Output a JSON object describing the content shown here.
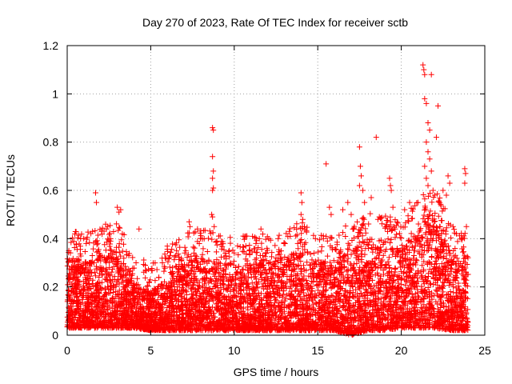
{
  "chart_data": {
    "type": "scatter",
    "title": "Day 270 of 2023, Rate Of TEC Index for receiver sctb",
    "xlabel": "GPS time / hours",
    "ylabel": "ROTI / TECUs",
    "xlim": [
      0,
      25
    ],
    "ylim": [
      0,
      1.2
    ],
    "x_ticks": [
      0,
      5,
      10,
      15,
      20,
      25
    ],
    "x_tick_labels": [
      "0",
      "5",
      "10",
      "15",
      "20",
      "25"
    ],
    "y_ticks": [
      0,
      0.2,
      0.4,
      0.6,
      0.8,
      1,
      1.2
    ],
    "y_tick_labels": [
      "0",
      "0.2",
      "0.4",
      "0.6",
      "0.8",
      "1",
      "1.2"
    ],
    "grid": true,
    "marker": "+",
    "color": "#ff0000",
    "x_range_of_data": [
      0,
      24
    ],
    "baseline_envelope": [
      {
        "x": 0,
        "low": 0.03,
        "high": 0.32
      },
      {
        "x": 1,
        "low": 0.03,
        "high": 0.3
      },
      {
        "x": 2,
        "low": 0.03,
        "high": 0.33
      },
      {
        "x": 3,
        "low": 0.03,
        "high": 0.35
      },
      {
        "x": 4,
        "low": 0.03,
        "high": 0.22
      },
      {
        "x": 5,
        "low": 0.02,
        "high": 0.18
      },
      {
        "x": 6,
        "low": 0.02,
        "high": 0.25
      },
      {
        "x": 7,
        "low": 0.02,
        "high": 0.3
      },
      {
        "x": 8,
        "low": 0.02,
        "high": 0.33
      },
      {
        "x": 9,
        "low": 0.02,
        "high": 0.3
      },
      {
        "x": 10,
        "low": 0.02,
        "high": 0.3
      },
      {
        "x": 11,
        "low": 0.02,
        "high": 0.3
      },
      {
        "x": 12,
        "low": 0.02,
        "high": 0.3
      },
      {
        "x": 13,
        "low": 0.02,
        "high": 0.32
      },
      {
        "x": 14,
        "low": 0.02,
        "high": 0.35
      },
      {
        "x": 15,
        "low": 0.02,
        "high": 0.3
      },
      {
        "x": 16,
        "low": 0.02,
        "high": 0.3
      },
      {
        "x": 17,
        "low": 0.0,
        "high": 0.35
      },
      {
        "x": 18,
        "low": 0.02,
        "high": 0.4
      },
      {
        "x": 19,
        "low": 0.02,
        "high": 0.38
      },
      {
        "x": 20,
        "low": 0.03,
        "high": 0.35
      },
      {
        "x": 21,
        "low": 0.03,
        "high": 0.45
      },
      {
        "x": 22,
        "low": 0.03,
        "high": 0.5
      },
      {
        "x": 23,
        "low": 0.02,
        "high": 0.35
      },
      {
        "x": 24,
        "low": 0.02,
        "high": 0.3
      }
    ],
    "notable_points": [
      {
        "x": 0.1,
        "y": 0.35
      },
      {
        "x": 0.8,
        "y": 0.4
      },
      {
        "x": 1.5,
        "y": 0.33
      },
      {
        "x": 1.7,
        "y": 0.59
      },
      {
        "x": 1.75,
        "y": 0.55
      },
      {
        "x": 2.3,
        "y": 0.46
      },
      {
        "x": 2.35,
        "y": 0.44
      },
      {
        "x": 2.6,
        "y": 0.4
      },
      {
        "x": 3.0,
        "y": 0.53
      },
      {
        "x": 3.1,
        "y": 0.51
      },
      {
        "x": 3.2,
        "y": 0.52
      },
      {
        "x": 3.3,
        "y": 0.42
      },
      {
        "x": 4.3,
        "y": 0.44
      },
      {
        "x": 5.7,
        "y": 0.3
      },
      {
        "x": 6.5,
        "y": 0.33
      },
      {
        "x": 7.1,
        "y": 0.35
      },
      {
        "x": 7.3,
        "y": 0.47
      },
      {
        "x": 7.35,
        "y": 0.45
      },
      {
        "x": 7.8,
        "y": 0.44
      },
      {
        "x": 8.2,
        "y": 0.4
      },
      {
        "x": 8.7,
        "y": 0.86
      },
      {
        "x": 8.75,
        "y": 0.85
      },
      {
        "x": 8.7,
        "y": 0.74
      },
      {
        "x": 8.75,
        "y": 0.68
      },
      {
        "x": 8.7,
        "y": 0.65
      },
      {
        "x": 8.75,
        "y": 0.61
      },
      {
        "x": 8.7,
        "y": 0.6
      },
      {
        "x": 8.65,
        "y": 0.5
      },
      {
        "x": 8.7,
        "y": 0.49
      },
      {
        "x": 8.8,
        "y": 0.45
      },
      {
        "x": 9.7,
        "y": 0.35
      },
      {
        "x": 10.2,
        "y": 0.37
      },
      {
        "x": 10.9,
        "y": 0.35
      },
      {
        "x": 11.3,
        "y": 0.38
      },
      {
        "x": 11.5,
        "y": 0.4
      },
      {
        "x": 11.6,
        "y": 0.44
      },
      {
        "x": 12.5,
        "y": 0.32
      },
      {
        "x": 13.3,
        "y": 0.43
      },
      {
        "x": 13.35,
        "y": 0.41
      },
      {
        "x": 13.8,
        "y": 0.38
      },
      {
        "x": 14.0,
        "y": 0.59
      },
      {
        "x": 14.05,
        "y": 0.55
      },
      {
        "x": 14.0,
        "y": 0.5
      },
      {
        "x": 14.1,
        "y": 0.48
      },
      {
        "x": 14.2,
        "y": 0.45
      },
      {
        "x": 15.5,
        "y": 0.71
      },
      {
        "x": 15.5,
        "y": 0.41
      },
      {
        "x": 15.7,
        "y": 0.53
      },
      {
        "x": 15.8,
        "y": 0.5
      },
      {
        "x": 16.5,
        "y": 0.52
      },
      {
        "x": 16.8,
        "y": 0.55
      },
      {
        "x": 17.0,
        "y": 0.5
      },
      {
        "x": 17.1,
        "y": 0.44
      },
      {
        "x": 17.5,
        "y": 0.78
      },
      {
        "x": 17.55,
        "y": 0.7
      },
      {
        "x": 17.6,
        "y": 0.66
      },
      {
        "x": 17.5,
        "y": 0.62
      },
      {
        "x": 17.7,
        "y": 0.6
      },
      {
        "x": 17.8,
        "y": 0.55
      },
      {
        "x": 18.2,
        "y": 0.57
      },
      {
        "x": 18.5,
        "y": 0.82
      },
      {
        "x": 18.6,
        "y": 0.48
      },
      {
        "x": 19.3,
        "y": 0.65
      },
      {
        "x": 19.35,
        "y": 0.62
      },
      {
        "x": 19.4,
        "y": 0.6
      },
      {
        "x": 19.5,
        "y": 0.53
      },
      {
        "x": 20.2,
        "y": 0.52
      },
      {
        "x": 20.5,
        "y": 0.55
      },
      {
        "x": 21.0,
        "y": 0.55
      },
      {
        "x": 21.3,
        "y": 1.12
      },
      {
        "x": 21.35,
        "y": 1.1
      },
      {
        "x": 21.4,
        "y": 1.08
      },
      {
        "x": 21.8,
        "y": 1.08
      },
      {
        "x": 21.4,
        "y": 0.98
      },
      {
        "x": 21.5,
        "y": 0.96
      },
      {
        "x": 22.2,
        "y": 0.95
      },
      {
        "x": 21.6,
        "y": 0.88
      },
      {
        "x": 21.7,
        "y": 0.85
      },
      {
        "x": 21.5,
        "y": 0.8
      },
      {
        "x": 21.6,
        "y": 0.76
      },
      {
        "x": 21.7,
        "y": 0.73
      },
      {
        "x": 21.4,
        "y": 0.7
      },
      {
        "x": 21.8,
        "y": 0.68
      },
      {
        "x": 22.1,
        "y": 0.82
      },
      {
        "x": 21.5,
        "y": 0.65
      },
      {
        "x": 21.6,
        "y": 0.62
      },
      {
        "x": 21.9,
        "y": 0.6
      },
      {
        "x": 22.0,
        "y": 0.58
      },
      {
        "x": 22.3,
        "y": 0.55
      },
      {
        "x": 22.5,
        "y": 0.6
      },
      {
        "x": 22.8,
        "y": 0.66
      },
      {
        "x": 22.9,
        "y": 0.63
      },
      {
        "x": 22.7,
        "y": 0.58
      },
      {
        "x": 23.1,
        "y": 0.45
      },
      {
        "x": 23.3,
        "y": 0.42
      },
      {
        "x": 23.6,
        "y": 0.4
      },
      {
        "x": 23.8,
        "y": 0.69
      },
      {
        "x": 23.85,
        "y": 0.67
      },
      {
        "x": 23.8,
        "y": 0.63
      },
      {
        "x": 23.9,
        "y": 0.45
      }
    ]
  }
}
